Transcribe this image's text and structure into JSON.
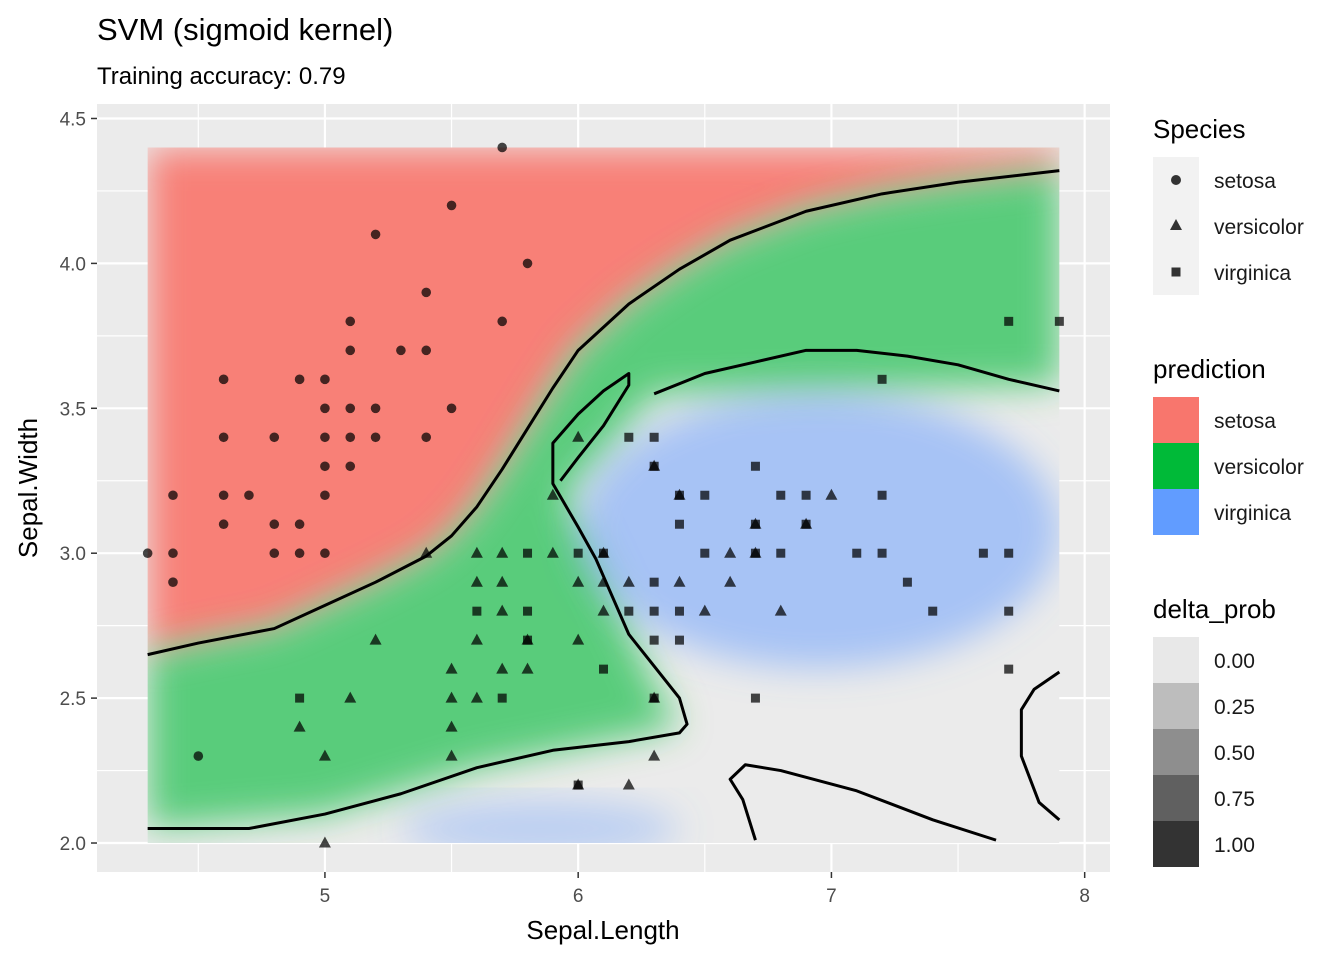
{
  "chart_data": {
    "type": "scatter",
    "title": "SVM (sigmoid kernel)",
    "subtitle": "Training accuracy: 0.79",
    "xlabel": "Sepal.Length",
    "ylabel": "Sepal.Width",
    "xlim": [
      4.1,
      8.1
    ],
    "ylim": [
      1.9,
      4.55
    ],
    "x_ticks": [
      5,
      6,
      7,
      8
    ],
    "y_ticks": [
      2.0,
      2.5,
      3.0,
      3.5,
      4.0,
      4.5
    ],
    "x_tick_labels": [
      "5",
      "6",
      "7",
      "8"
    ],
    "y_tick_labels": [
      "2.0",
      "2.5",
      "3.0",
      "3.5",
      "4.0",
      "4.5"
    ],
    "grid": true,
    "legend_position": "right",
    "legends": {
      "species": {
        "title": "Species",
        "entries": [
          {
            "label": "setosa",
            "shape": "circle"
          },
          {
            "label": "versicolor",
            "shape": "triangle"
          },
          {
            "label": "virginica",
            "shape": "square"
          }
        ]
      },
      "prediction": {
        "title": "prediction",
        "entries": [
          {
            "label": "setosa",
            "color": "#F8766D"
          },
          {
            "label": "versicolor",
            "color": "#00BA38"
          },
          {
            "label": "virginica",
            "color": "#619CFF"
          }
        ]
      },
      "delta_prob": {
        "title": "delta_prob",
        "entries": [
          {
            "label": "0.00",
            "color": "#E8E8E8"
          },
          {
            "label": "0.25",
            "color": "#BDBDBD"
          },
          {
            "label": "0.50",
            "color": "#8E8E8E"
          },
          {
            "label": "0.75",
            "color": "#606060"
          },
          {
            "label": "1.00",
            "color": "#333333"
          }
        ]
      }
    },
    "decision_grid": {
      "x_range": [
        4.3,
        7.9
      ],
      "y_range": [
        2.0,
        4.4
      ]
    },
    "series": [
      {
        "name": "setosa",
        "points": [
          [
            4.3,
            3.0
          ],
          [
            4.4,
            3.2
          ],
          [
            4.4,
            3.0
          ],
          [
            4.4,
            2.9
          ],
          [
            4.5,
            2.3
          ],
          [
            4.6,
            3.6
          ],
          [
            4.6,
            3.4
          ],
          [
            4.6,
            3.2
          ],
          [
            4.6,
            3.1
          ],
          [
            4.7,
            3.2
          ],
          [
            4.8,
            3.4
          ],
          [
            4.8,
            3.1
          ],
          [
            4.8,
            3.0
          ],
          [
            4.9,
            3.6
          ],
          [
            4.9,
            3.1
          ],
          [
            4.9,
            3.0
          ],
          [
            5.0,
            3.6
          ],
          [
            5.0,
            3.5
          ],
          [
            5.0,
            3.4
          ],
          [
            5.0,
            3.3
          ],
          [
            5.0,
            3.2
          ],
          [
            5.0,
            3.0
          ],
          [
            5.1,
            3.8
          ],
          [
            5.1,
            3.7
          ],
          [
            5.1,
            3.5
          ],
          [
            5.1,
            3.4
          ],
          [
            5.1,
            3.3
          ],
          [
            5.2,
            4.1
          ],
          [
            5.2,
            3.5
          ],
          [
            5.2,
            3.4
          ],
          [
            5.3,
            3.7
          ],
          [
            5.4,
            3.9
          ],
          [
            5.4,
            3.7
          ],
          [
            5.4,
            3.4
          ],
          [
            5.5,
            4.2
          ],
          [
            5.5,
            3.5
          ],
          [
            5.7,
            4.4
          ],
          [
            5.7,
            3.8
          ],
          [
            5.8,
            4.0
          ]
        ]
      },
      {
        "name": "versicolor",
        "points": [
          [
            4.9,
            2.4
          ],
          [
            5.0,
            2.3
          ],
          [
            5.0,
            2.0
          ],
          [
            5.1,
            2.5
          ],
          [
            5.2,
            2.7
          ],
          [
            5.4,
            3.0
          ],
          [
            5.5,
            2.6
          ],
          [
            5.5,
            2.5
          ],
          [
            5.5,
            2.4
          ],
          [
            5.5,
            2.3
          ],
          [
            5.6,
            3.0
          ],
          [
            5.6,
            2.9
          ],
          [
            5.6,
            2.7
          ],
          [
            5.6,
            2.5
          ],
          [
            5.7,
            3.0
          ],
          [
            5.7,
            2.9
          ],
          [
            5.7,
            2.8
          ],
          [
            5.7,
            2.6
          ],
          [
            5.8,
            2.7
          ],
          [
            5.8,
            2.6
          ],
          [
            5.9,
            3.2
          ],
          [
            5.9,
            3.0
          ],
          [
            6.0,
            3.4
          ],
          [
            6.0,
            2.9
          ],
          [
            6.0,
            2.7
          ],
          [
            6.0,
            2.2
          ],
          [
            6.1,
            3.0
          ],
          [
            6.1,
            2.9
          ],
          [
            6.1,
            2.8
          ],
          [
            6.2,
            2.9
          ],
          [
            6.2,
            2.2
          ],
          [
            6.3,
            3.3
          ],
          [
            6.3,
            2.5
          ],
          [
            6.3,
            2.3
          ],
          [
            6.4,
            3.2
          ],
          [
            6.4,
            2.9
          ],
          [
            6.5,
            2.8
          ],
          [
            6.6,
            3.0
          ],
          [
            6.6,
            2.9
          ],
          [
            6.7,
            3.1
          ],
          [
            6.7,
            3.0
          ],
          [
            6.8,
            2.8
          ],
          [
            6.9,
            3.1
          ],
          [
            7.0,
            3.2
          ]
        ]
      },
      {
        "name": "virginica",
        "points": [
          [
            4.9,
            2.5
          ],
          [
            5.6,
            2.8
          ],
          [
            5.7,
            2.5
          ],
          [
            5.8,
            3.0
          ],
          [
            5.8,
            2.8
          ],
          [
            5.8,
            2.7
          ],
          [
            6.0,
            3.0
          ],
          [
            6.0,
            2.2
          ],
          [
            6.1,
            3.0
          ],
          [
            6.1,
            2.6
          ],
          [
            6.2,
            3.4
          ],
          [
            6.2,
            2.8
          ],
          [
            6.3,
            3.4
          ],
          [
            6.3,
            3.3
          ],
          [
            6.3,
            2.9
          ],
          [
            6.3,
            2.8
          ],
          [
            6.3,
            2.7
          ],
          [
            6.3,
            2.5
          ],
          [
            6.4,
            3.2
          ],
          [
            6.4,
            3.1
          ],
          [
            6.4,
            2.8
          ],
          [
            6.4,
            2.7
          ],
          [
            6.5,
            3.2
          ],
          [
            6.5,
            3.0
          ],
          [
            6.7,
            3.3
          ],
          [
            6.7,
            3.1
          ],
          [
            6.7,
            3.0
          ],
          [
            6.7,
            2.5
          ],
          [
            6.8,
            3.2
          ],
          [
            6.8,
            3.0
          ],
          [
            6.9,
            3.2
          ],
          [
            6.9,
            3.1
          ],
          [
            7.1,
            3.0
          ],
          [
            7.2,
            3.6
          ],
          [
            7.2,
            3.2
          ],
          [
            7.2,
            3.0
          ],
          [
            7.3,
            2.9
          ],
          [
            7.4,
            2.8
          ],
          [
            7.6,
            3.0
          ],
          [
            7.7,
            3.8
          ],
          [
            7.7,
            3.0
          ],
          [
            7.7,
            2.8
          ],
          [
            7.7,
            2.6
          ],
          [
            7.9,
            3.8
          ]
        ]
      }
    ],
    "decision_boundaries": [
      [
        [
          4.3,
          2.65
        ],
        [
          4.5,
          2.69
        ],
        [
          4.8,
          2.74
        ],
        [
          5.0,
          2.82
        ],
        [
          5.2,
          2.9
        ],
        [
          5.4,
          2.99
        ],
        [
          5.5,
          3.06
        ],
        [
          5.6,
          3.16
        ],
        [
          5.7,
          3.29
        ],
        [
          5.8,
          3.43
        ],
        [
          5.9,
          3.57
        ],
        [
          6.0,
          3.7
        ],
        [
          6.2,
          3.86
        ],
        [
          6.4,
          3.98
        ],
        [
          6.6,
          4.08
        ],
        [
          6.9,
          4.18
        ],
        [
          7.2,
          4.24
        ],
        [
          7.5,
          4.28
        ],
        [
          7.9,
          4.32
        ]
      ],
      [
        [
          4.3,
          2.05
        ],
        [
          4.7,
          2.05
        ],
        [
          5.0,
          2.1
        ],
        [
          5.3,
          2.17
        ],
        [
          5.6,
          2.26
        ],
        [
          5.9,
          2.32
        ],
        [
          6.2,
          2.35
        ],
        [
          6.4,
          2.38
        ],
        [
          6.43,
          2.41
        ],
        [
          6.4,
          2.5
        ],
        [
          6.3,
          2.61
        ],
        [
          6.2,
          2.72
        ],
        [
          6.14,
          2.84
        ],
        [
          6.07,
          2.98
        ],
        [
          6.0,
          3.09
        ],
        [
          5.94,
          3.18
        ],
        [
          5.9,
          3.24
        ],
        [
          5.9,
          3.38
        ],
        [
          6.0,
          3.48
        ],
        [
          6.1,
          3.56
        ],
        [
          6.2,
          3.62
        ],
        [
          6.2,
          3.58
        ],
        [
          6.1,
          3.44
        ],
        [
          6.0,
          3.33
        ],
        [
          5.93,
          3.25
        ]
      ],
      [
        [
          6.3,
          3.55
        ],
        [
          6.5,
          3.62
        ],
        [
          6.7,
          3.66
        ],
        [
          6.9,
          3.7
        ],
        [
          7.1,
          3.7
        ],
        [
          7.3,
          3.68
        ],
        [
          7.5,
          3.65
        ],
        [
          7.7,
          3.6
        ],
        [
          7.9,
          3.56
        ]
      ],
      [
        [
          6.7,
          2.01
        ],
        [
          6.65,
          2.15
        ],
        [
          6.6,
          2.22
        ],
        [
          6.66,
          2.27
        ],
        [
          6.8,
          2.25
        ],
        [
          7.1,
          2.18
        ],
        [
          7.4,
          2.08
        ],
        [
          7.65,
          2.01
        ]
      ],
      [
        [
          7.9,
          2.59
        ],
        [
          7.8,
          2.53
        ],
        [
          7.75,
          2.46
        ],
        [
          7.75,
          2.3
        ],
        [
          7.82,
          2.14
        ],
        [
          7.9,
          2.08
        ]
      ]
    ]
  }
}
